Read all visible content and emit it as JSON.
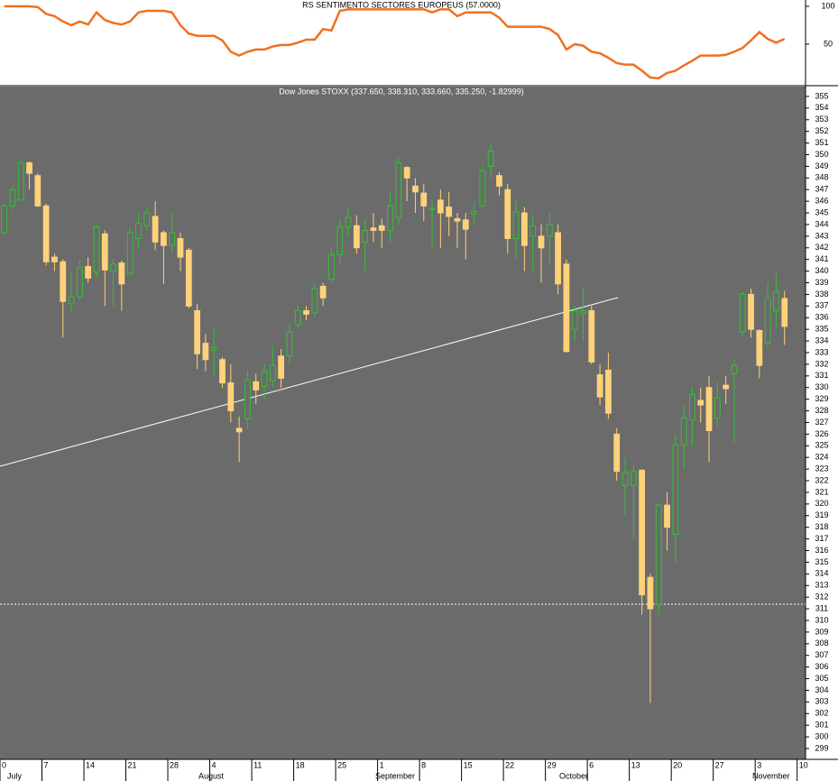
{
  "chart_data": [
    {
      "type": "line",
      "title": "RS SENTIMENTO SECTORES EUROPEUS (57.0000)",
      "color": "#f07020",
      "xlim": [
        0,
        96
      ],
      "ylim": [
        -3.57,
        108.33
      ],
      "yticks": [
        50,
        100
      ],
      "values": [
        100,
        100,
        100,
        100,
        99,
        90,
        87,
        80,
        75,
        80,
        76,
        92,
        82,
        78,
        76,
        80,
        92,
        94,
        94,
        94,
        92,
        75,
        64,
        61,
        61,
        61,
        55,
        40,
        35,
        40,
        43,
        43,
        47,
        49,
        49,
        52,
        56,
        56,
        70,
        68,
        94,
        96,
        96,
        96,
        96,
        96,
        96,
        96,
        96,
        96,
        96,
        92,
        96,
        96,
        87,
        92,
        92,
        92,
        92,
        85,
        73,
        73,
        73,
        73,
        73,
        70,
        62,
        43,
        50,
        48,
        40,
        38,
        32,
        25,
        23,
        23,
        15,
        6,
        5,
        12,
        15,
        22,
        28,
        35,
        35,
        35,
        36,
        40,
        45,
        55,
        66,
        57,
        52,
        57
      ]
    },
    {
      "type": "candlestick",
      "title": "Dow Jones STOXX (337.650, 338.310, 333.660, 335.250, -1.82999)",
      "up_color": "#33c033",
      "down_color": "#ffd27a",
      "xlim": [
        0,
        96
      ],
      "xticks": [
        0,
        {
          "value": 5,
          "label": "7"
        },
        {
          "value": 10,
          "label": "14"
        },
        {
          "value": 15,
          "label": "21"
        },
        {
          "value": 20,
          "label": "28"
        },
        {
          "value": 25,
          "label": "4"
        },
        {
          "value": 30,
          "label": "11"
        },
        {
          "value": 35,
          "label": "18"
        },
        {
          "value": 40,
          "label": "25"
        },
        {
          "value": 45,
          "label": "1"
        },
        {
          "value": 50,
          "label": "8"
        },
        {
          "value": 55,
          "label": "15"
        },
        {
          "value": 60,
          "label": "22"
        },
        {
          "value": 65,
          "label": "29"
        },
        {
          "value": 70,
          "label": "6"
        },
        {
          "value": 75,
          "label": "13"
        },
        {
          "value": 80,
          "label": "20"
        },
        {
          "value": 85,
          "label": "27"
        },
        {
          "value": 90,
          "label": "3"
        },
        {
          "value": 95,
          "label": "10"
        }
      ],
      "months": [
        "July",
        "August",
        "September",
        "October",
        "November"
      ],
      "ylim": [
        298.07,
        355.77
      ],
      "yticks": [
        299,
        300,
        301,
        302,
        303,
        304,
        305,
        306,
        307,
        308,
        309,
        310,
        311,
        312,
        313,
        314,
        315,
        316,
        317,
        318,
        319,
        320,
        321,
        322,
        323,
        324,
        325,
        326,
        327,
        328,
        329,
        330,
        331,
        332,
        333,
        334,
        335,
        336,
        337,
        338,
        339,
        340,
        341,
        342,
        343,
        344,
        345,
        346,
        347,
        348,
        349,
        350,
        351,
        352,
        353,
        354,
        355
      ],
      "open": [
        343.3,
        345.6,
        346.1,
        349.3,
        348.2,
        345.6,
        341.2,
        340.8,
        337.2,
        337.8,
        340.4,
        339.9,
        343.2,
        340.0,
        340.7,
        339.8,
        342.8,
        343.9,
        344.7,
        343.3,
        342.2,
        342.8,
        341.8,
        336.6,
        333.8,
        333.2,
        332.4,
        330.4,
        326.5,
        327.3,
        330.5,
        330.1,
        330.6,
        332.7,
        332.7,
        335.4,
        336.6,
        336.4,
        338.7,
        339.3,
        341.4,
        343.8,
        343.9,
        342.5,
        343.7,
        343.9,
        343.5,
        344.6,
        348.9,
        347.3,
        346.7,
        345.3,
        346.1,
        345.5,
        344.5,
        344.4,
        344.9,
        345.6,
        349.0,
        348.2,
        347.0,
        342.8,
        345.0,
        343.0,
        343.0,
        343.0,
        343.3,
        340.6,
        335.0,
        336.4,
        336.6,
        331.1,
        331.5,
        326.0,
        321.6,
        321.6,
        322.9,
        313.7,
        311.4,
        319.9,
        317.4,
        325.1,
        327.2,
        328.9,
        330.0,
        327.4,
        330.2,
        331.2,
        334.8,
        338.0,
        334.9,
        333.8,
        336.6,
        337.65
      ],
      "high": [
        345.8,
        347.2,
        349.5,
        349.4,
        348.4,
        345.8,
        341.5,
        341.0,
        340.0,
        341.0,
        341.2,
        344.0,
        343.5,
        341.0,
        340.9,
        343.8,
        345.0,
        345.5,
        346.0,
        343.5,
        345.0,
        343.3,
        342.0,
        337.2,
        334.6,
        335.0,
        332.6,
        332.0,
        327.5,
        331.5,
        331.2,
        332.0,
        333.5,
        333.3,
        335.5,
        337.0,
        337.0,
        339.0,
        339.0,
        342.0,
        344.5,
        345.5,
        344.8,
        344.5,
        345.0,
        344.5,
        346.8,
        349.8,
        349.0,
        348.0,
        347.5,
        346.0,
        347.0,
        346.8,
        345.0,
        345.0,
        346.0,
        349.0,
        351.0,
        348.5,
        347.5,
        346.0,
        345.5,
        344.8,
        344.0,
        345.0,
        344.0,
        341.0,
        337.0,
        338.5,
        337.0,
        332.0,
        333.0,
        326.5,
        324.0,
        323.5,
        323.0,
        314.0,
        320.0,
        321.0,
        326.0,
        328.5,
        330.0,
        330.0,
        331.0,
        330.5,
        331.0,
        332.5,
        338.2,
        338.5,
        335.0,
        339.0,
        339.8,
        338.31
      ],
      "low": [
        343.2,
        345.3,
        346.0,
        347.0,
        345.5,
        340.5,
        340.0,
        334.3,
        336.5,
        337.5,
        339.0,
        339.5,
        337.0,
        337.0,
        336.6,
        339.6,
        342.0,
        343.5,
        341.8,
        338.9,
        341.5,
        340.0,
        336.8,
        331.6,
        331.4,
        331.0,
        330.0,
        327.0,
        323.6,
        326.4,
        328.6,
        329.0,
        330.0,
        330.0,
        332.0,
        335.0,
        335.8,
        336.0,
        337.0,
        339.0,
        340.5,
        343.0,
        341.5,
        340.0,
        342.5,
        342.0,
        342.5,
        344.0,
        346.0,
        345.0,
        344.3,
        342.0,
        342.0,
        343.0,
        342.0,
        341.0,
        344.0,
        345.5,
        348.0,
        346.5,
        341.5,
        341.0,
        340.0,
        340.0,
        339.0,
        340.5,
        338.0,
        333.0,
        334.0,
        334.0,
        332.0,
        328.5,
        327.3,
        322.0,
        319.0,
        317.0,
        310.5,
        302.9,
        310.5,
        316.0,
        315.0,
        323.0,
        325.0,
        327.0,
        323.6,
        326.5,
        328.6,
        325.3,
        334.4,
        334.3,
        330.8,
        333.5,
        335.0,
        333.66
      ],
      "close": [
        345.6,
        347.0,
        349.3,
        348.4,
        345.6,
        340.8,
        340.8,
        337.4,
        337.8,
        340.3,
        339.4,
        343.8,
        340.1,
        340.6,
        338.9,
        343.3,
        344.1,
        345.0,
        342.5,
        342.2,
        343.3,
        341.2,
        337.0,
        332.9,
        332.4,
        333.4,
        330.4,
        328.0,
        326.2,
        330.7,
        329.8,
        331.4,
        331.9,
        330.8,
        334.8,
        336.6,
        336.3,
        338.5,
        337.7,
        341.4,
        343.8,
        344.6,
        342.0,
        343.5,
        343.5,
        343.5,
        345.6,
        349.3,
        348.0,
        346.8,
        345.6,
        345.4,
        345.0,
        344.7,
        344.3,
        343.6,
        345.1,
        348.6,
        350.3,
        347.3,
        342.8,
        345.1,
        342.2,
        343.9,
        342.0,
        344.0,
        338.9,
        333.1,
        336.6,
        336.6,
        332.2,
        329.2,
        327.8,
        322.8,
        322.7,
        322.8,
        312.2,
        311.0,
        319.9,
        318.0,
        325.1,
        327.4,
        329.4,
        328.5,
        326.3,
        329.1,
        329.9,
        331.9,
        338.0,
        335.0,
        331.9,
        337.7,
        338.2,
        335.25
      ]
    }
  ]
}
